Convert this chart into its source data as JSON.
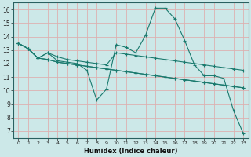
{
  "xlabel": "Humidex (Indice chaleur)",
  "background_color": "#cce8e8",
  "grid_color": "#ddb0b0",
  "line_color": "#1a7a6e",
  "xlim": [
    -0.5,
    23.5
  ],
  "ylim": [
    6.5,
    16.5
  ],
  "xticks": [
    0,
    1,
    2,
    3,
    4,
    5,
    6,
    7,
    8,
    9,
    10,
    11,
    12,
    13,
    14,
    15,
    16,
    17,
    18,
    19,
    20,
    21,
    22,
    23
  ],
  "yticks": [
    7,
    8,
    9,
    10,
    11,
    12,
    13,
    14,
    15,
    16
  ],
  "series": [
    [
      13.5,
      13.1,
      12.4,
      12.8,
      12.2,
      12.1,
      12.0,
      11.5,
      9.3,
      10.1,
      13.4,
      13.2,
      12.8,
      14.1,
      16.1,
      16.1,
      15.3,
      13.7,
      11.9,
      11.1,
      11.1,
      10.9,
      8.5,
      6.8
    ],
    [
      13.5,
      13.1,
      12.4,
      12.8,
      12.5,
      12.3,
      12.2,
      12.1,
      12.0,
      11.9,
      12.8,
      12.7,
      12.6,
      12.5,
      12.4,
      12.3,
      12.2,
      12.1,
      12.0,
      11.9,
      11.8,
      11.7,
      11.6,
      11.5
    ],
    [
      13.5,
      13.1,
      12.4,
      12.3,
      12.1,
      12.0,
      11.9,
      11.8,
      11.7,
      11.6,
      11.5,
      11.4,
      11.3,
      11.2,
      11.1,
      11.0,
      10.9,
      10.8,
      10.7,
      10.6,
      10.5,
      10.4,
      10.3,
      10.2
    ],
    [
      13.5,
      13.1,
      12.4,
      12.3,
      12.1,
      12.0,
      11.9,
      11.8,
      11.7,
      11.6,
      11.5,
      11.4,
      11.3,
      11.2,
      11.1,
      11.0,
      10.9,
      10.8,
      10.7,
      10.6,
      10.5,
      10.4,
      10.3,
      10.2
    ]
  ]
}
